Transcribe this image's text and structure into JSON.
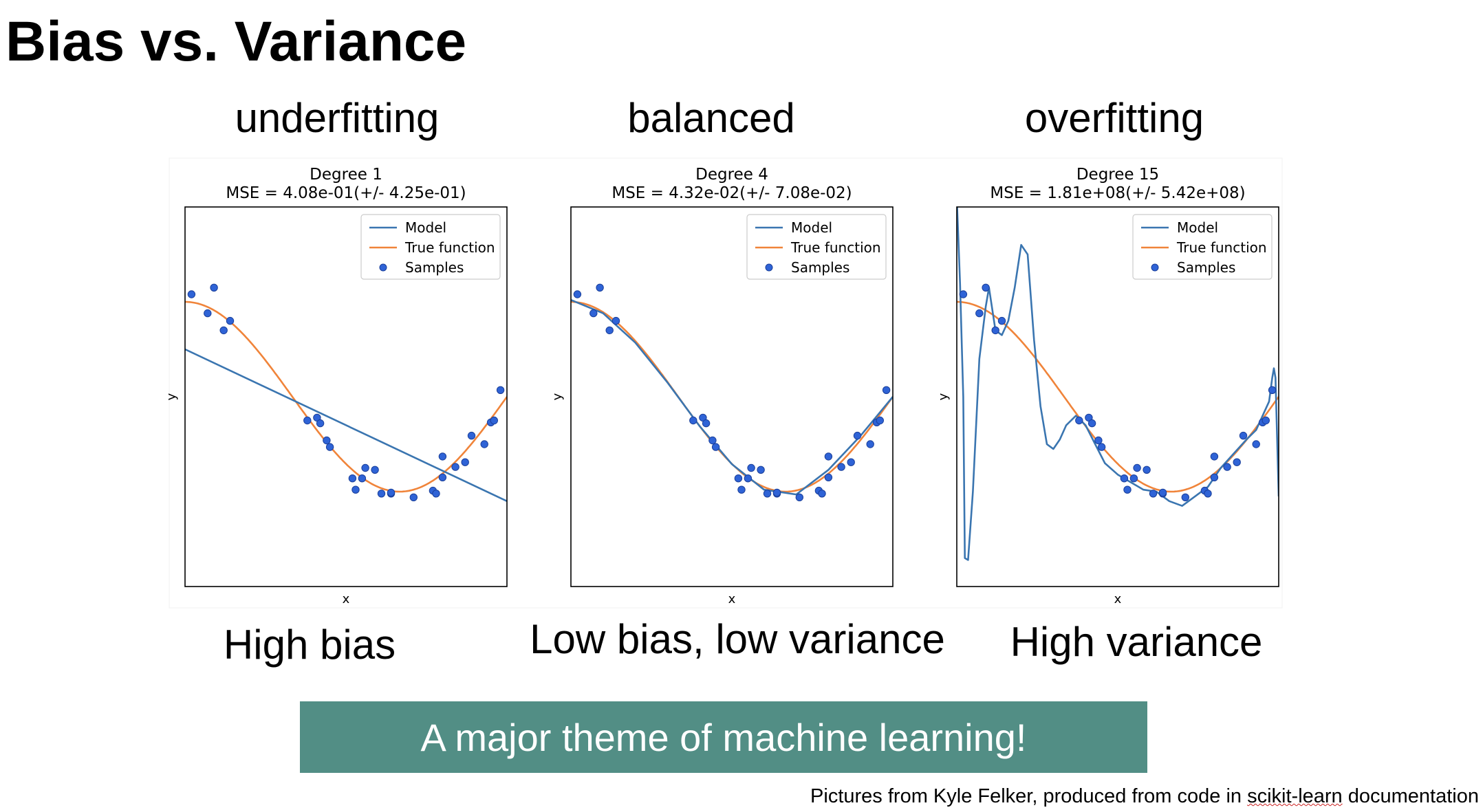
{
  "slide": {
    "title": "Bias vs. Variance",
    "column_headings": [
      "underfitting",
      "balanced",
      "overfitting"
    ],
    "column_captions": [
      "High bias",
      "Low bias, low variance",
      "High variance"
    ],
    "banner": "A major theme of machine learning!",
    "credit_prefix": "Pictures from Kyle Felker, produced from code in ",
    "credit_link": "scikit-learn",
    "credit_suffix": " documentation"
  },
  "colors": {
    "model": "#3a75b0",
    "true_function": "#f0843a",
    "samples": "#2f63d6",
    "banner_bg": "#528e85",
    "banner_text": "#ffffff"
  },
  "chart_data": [
    {
      "type": "line",
      "title": "Degree 1",
      "subtitle": "MSE = 4.08e-01(+/- 4.25e-01)",
      "xlabel": "x",
      "ylabel": "y",
      "xlim": [
        0,
        1
      ],
      "ylim": [
        -2,
        2
      ],
      "grid": false,
      "legend": "top-right",
      "legend_entries": [
        "Model",
        "True function",
        "Samples"
      ],
      "true_function": "cos(1.5*pi*x)",
      "model": {
        "name": "Model",
        "x": [
          0,
          1
        ],
        "y": [
          0.5,
          -1.1
        ]
      },
      "samples": {
        "name": "Samples",
        "x": [
          0.02,
          0.07,
          0.09,
          0.12,
          0.14,
          0.38,
          0.41,
          0.42,
          0.44,
          0.45,
          0.52,
          0.53,
          0.55,
          0.56,
          0.59,
          0.61,
          0.64,
          0.64,
          0.71,
          0.77,
          0.78,
          0.8,
          0.8,
          0.84,
          0.87,
          0.89,
          0.93,
          0.95,
          0.96,
          0.98
        ],
        "y": [
          1.08,
          0.88,
          1.15,
          0.7,
          0.8,
          -0.25,
          -0.22,
          -0.28,
          -0.46,
          -0.53,
          -0.86,
          -0.98,
          -0.86,
          -0.75,
          -0.77,
          -1.02,
          -1.02,
          -1.01,
          -1.06,
          -0.99,
          -1.02,
          -0.63,
          -0.85,
          -0.74,
          -0.69,
          -0.41,
          -0.5,
          -0.27,
          -0.25,
          0.07
        ]
      }
    },
    {
      "type": "line",
      "title": "Degree 4",
      "subtitle": "MSE = 4.32e-02(+/- 7.08e-02)",
      "xlabel": "x",
      "ylabel": "y",
      "xlim": [
        0,
        1
      ],
      "ylim": [
        -2,
        2
      ],
      "grid": false,
      "legend": "top-right",
      "legend_entries": [
        "Model",
        "True function",
        "Samples"
      ],
      "true_function": "cos(1.5*pi*x)",
      "model": {
        "name": "Model",
        "x": [
          0,
          0.1,
          0.2,
          0.3,
          0.4,
          0.5,
          0.6,
          0.7,
          0.8,
          0.9,
          1.0
        ],
        "y": [
          1.02,
          0.88,
          0.57,
          0.15,
          -0.31,
          -0.71,
          -0.98,
          -1.03,
          -0.77,
          -0.41,
          0.0
        ]
      },
      "samples": {
        "name": "Samples",
        "x": [
          0.02,
          0.07,
          0.09,
          0.12,
          0.14,
          0.38,
          0.41,
          0.42,
          0.44,
          0.45,
          0.52,
          0.53,
          0.55,
          0.56,
          0.59,
          0.61,
          0.64,
          0.64,
          0.71,
          0.77,
          0.78,
          0.8,
          0.8,
          0.84,
          0.87,
          0.89,
          0.93,
          0.95,
          0.96,
          0.98
        ],
        "y": [
          1.08,
          0.88,
          1.15,
          0.7,
          0.8,
          -0.25,
          -0.22,
          -0.28,
          -0.46,
          -0.53,
          -0.86,
          -0.98,
          -0.86,
          -0.75,
          -0.77,
          -1.02,
          -1.02,
          -1.01,
          -1.06,
          -0.99,
          -1.02,
          -0.63,
          -0.85,
          -0.74,
          -0.69,
          -0.41,
          -0.5,
          -0.27,
          -0.25,
          0.07
        ]
      }
    },
    {
      "type": "line",
      "title": "Degree 15",
      "subtitle": "MSE = 1.81e+08(+/- 5.42e+08)",
      "xlabel": "x",
      "ylabel": "y",
      "xlim": [
        0,
        1
      ],
      "ylim": [
        -2,
        2
      ],
      "grid": false,
      "legend": "top-right",
      "legend_entries": [
        "Model",
        "True function",
        "Samples"
      ],
      "true_function": "cos(1.5*pi*x)",
      "model": {
        "name": "Model",
        "x": [
          0.0,
          0.01,
          0.02,
          0.025,
          0.035,
          0.05,
          0.07,
          0.09,
          0.1,
          0.12,
          0.14,
          0.16,
          0.18,
          0.2,
          0.22,
          0.24,
          0.26,
          0.28,
          0.3,
          0.32,
          0.34,
          0.37,
          0.4,
          0.43,
          0.46,
          0.5,
          0.54,
          0.58,
          0.62,
          0.66,
          0.7,
          0.74,
          0.78,
          0.82,
          0.86,
          0.9,
          0.93,
          0.95,
          0.97,
          0.98,
          0.985,
          0.99,
          1.0
        ],
        "y": [
          2.1,
          1.2,
          0.0,
          -1.7,
          -1.72,
          -1.0,
          0.4,
          0.95,
          1.15,
          0.7,
          0.65,
          0.8,
          1.15,
          1.6,
          1.5,
          0.6,
          -0.1,
          -0.5,
          -0.55,
          -0.45,
          -0.3,
          -0.2,
          -0.3,
          -0.5,
          -0.7,
          -0.82,
          -0.9,
          -0.98,
          -1.0,
          -1.1,
          -1.15,
          -1.05,
          -0.95,
          -0.75,
          -0.6,
          -0.45,
          -0.35,
          -0.2,
          -0.05,
          0.2,
          0.3,
          0.2,
          -1.05
        ]
      },
      "samples": {
        "name": "Samples",
        "x": [
          0.02,
          0.07,
          0.09,
          0.12,
          0.14,
          0.38,
          0.41,
          0.42,
          0.44,
          0.45,
          0.52,
          0.53,
          0.55,
          0.56,
          0.59,
          0.61,
          0.64,
          0.64,
          0.71,
          0.77,
          0.78,
          0.8,
          0.8,
          0.84,
          0.87,
          0.89,
          0.93,
          0.95,
          0.96,
          0.98
        ],
        "y": [
          1.08,
          0.88,
          1.15,
          0.7,
          0.8,
          -0.25,
          -0.22,
          -0.28,
          -0.46,
          -0.53,
          -0.86,
          -0.98,
          -0.86,
          -0.75,
          -0.77,
          -1.02,
          -1.02,
          -1.01,
          -1.06,
          -0.99,
          -1.02,
          -0.63,
          -0.85,
          -0.74,
          -0.69,
          -0.41,
          -0.5,
          -0.27,
          -0.25,
          0.07
        ]
      }
    }
  ]
}
